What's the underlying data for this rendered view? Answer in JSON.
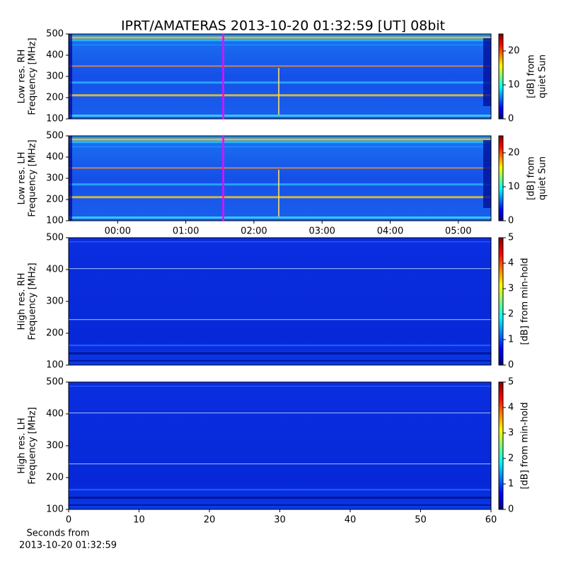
{
  "title": "IPRT/AMATERAS 2013-10-20 01:32:59 [UT]   08bit",
  "chart_data": [
    {
      "type": "spectrogram",
      "ylabel": [
        "Low res. RH",
        "Frequency [MHz]"
      ],
      "xlim": [
        -0.72,
        5.48
      ],
      "ylim": [
        100,
        500
      ],
      "yticks": [
        100,
        200,
        300,
        400,
        500
      ],
      "marker_x": 1.55,
      "marker_color": "#ff00ff",
      "colorbar_label": [
        "[dB] from",
        "quiet Sun"
      ],
      "clim": [
        0,
        25
      ],
      "cticks": [
        0,
        10,
        20
      ]
    },
    {
      "type": "spectrogram",
      "ylabel": [
        "Low res. LH",
        "Frequency [MHz]"
      ],
      "xlim": [
        -0.72,
        5.48
      ],
      "ylim": [
        100,
        500
      ],
      "yticks": [
        100,
        200,
        300,
        400,
        500
      ],
      "xticks": [
        {
          "value": 0,
          "label": "00:00"
        },
        {
          "value": 1,
          "label": "01:00"
        },
        {
          "value": 2,
          "label": "02:00"
        },
        {
          "value": 3,
          "label": "03:00"
        },
        {
          "value": 4,
          "label": "04:00"
        },
        {
          "value": 5,
          "label": "05:00"
        }
      ],
      "marker_x": 1.55,
      "marker_color": "#ff00ff",
      "colorbar_label": [
        "[dB] from",
        "quiet Sun"
      ],
      "clim": [
        0,
        25
      ],
      "cticks": [
        0,
        10,
        20
      ]
    },
    {
      "type": "spectrogram",
      "ylabel": [
        "High res. RH",
        "Frequency [MHz]"
      ],
      "xlim": [
        0,
        60
      ],
      "ylim": [
        100,
        500
      ],
      "yticks": [
        100,
        200,
        300,
        400,
        500
      ],
      "colorbar_label": [
        "[dB] from min-hold"
      ],
      "clim": [
        0,
        5
      ],
      "cticks": [
        0,
        1,
        2,
        3,
        4,
        5
      ]
    },
    {
      "type": "spectrogram",
      "ylabel": [
        "High res. LH",
        "Frequency [MHz]"
      ],
      "xlim": [
        0,
        60
      ],
      "ylim": [
        100,
        500
      ],
      "yticks": [
        100,
        200,
        300,
        400,
        500
      ],
      "xticks": [
        0,
        10,
        20,
        30,
        40,
        50,
        60
      ],
      "xlabel": [
        "Seconds from",
        "2013-10-20 01:32:59"
      ],
      "colorbar_label": [
        "[dB] from min-hold"
      ],
      "clim": [
        0,
        5
      ],
      "cticks": [
        0,
        1,
        2,
        3,
        4,
        5
      ]
    }
  ]
}
